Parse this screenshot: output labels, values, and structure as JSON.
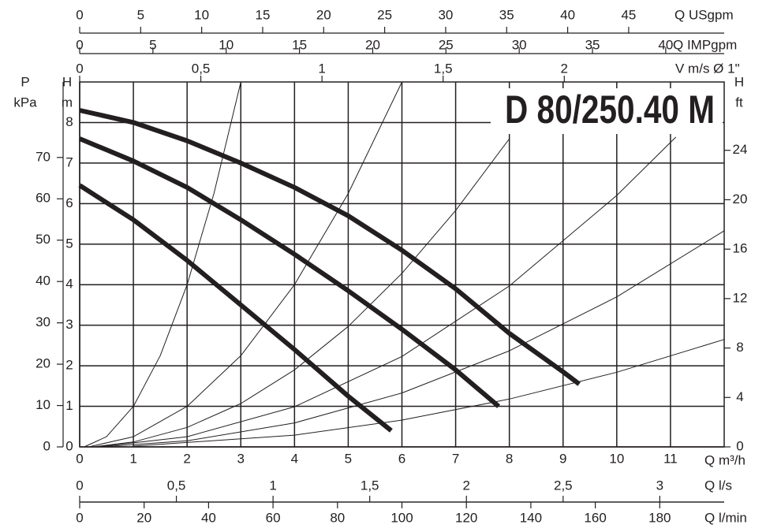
{
  "chart_data": {
    "type": "line",
    "title": "D 80/250.40 M",
    "x_label": "Q m³/h",
    "y_label": {
      "symbol": "H",
      "unit": "m"
    },
    "xlim": [
      0,
      12
    ],
    "xticks": [
      0,
      1,
      2,
      3,
      4,
      5,
      6,
      7,
      8,
      9,
      10,
      11
    ],
    "ylim": [
      0,
      9
    ],
    "yticks": [
      0,
      1,
      2,
      3,
      4,
      5,
      6,
      7,
      8
    ],
    "grid": true,
    "left_axis": {
      "symbol": "P",
      "unit": "kPa",
      "lim": [
        0,
        88.26
      ],
      "ticks": [
        0,
        10,
        20,
        30,
        40,
        50,
        60,
        70
      ]
    },
    "right_axis": {
      "symbol": "H",
      "unit": "ft",
      "lim": [
        0,
        29.53
      ],
      "ticks": [
        0,
        4,
        8,
        12,
        16,
        20,
        24
      ]
    },
    "top_axes": [
      {
        "label": "Q USgpm",
        "lim": [
          0,
          52.83
        ],
        "ticks": [
          0,
          5,
          10,
          15,
          20,
          25,
          30,
          35,
          40,
          45
        ]
      },
      {
        "label": "Q IMPgpm",
        "lim": [
          0,
          43.99
        ],
        "ticks": [
          0,
          5,
          10,
          15,
          20,
          25,
          30,
          35,
          40
        ]
      },
      {
        "label": "V m/s Ø 1\"",
        "lim": [
          0,
          2.66
        ],
        "ticks": [
          0,
          {
            "value": 0.5,
            "label": "0,5"
          },
          1,
          {
            "value": 1.5,
            "label": "1,5"
          },
          2
        ]
      }
    ],
    "bottom_axes": [
      {
        "label": "Q l/s",
        "lim": [
          0,
          3.333
        ],
        "ticks": [
          0,
          {
            "value": 0.5,
            "label": "0,5"
          },
          1,
          {
            "value": 1.5,
            "label": "1,5"
          },
          2,
          {
            "value": 2.5,
            "label": "2,5"
          },
          3
        ]
      },
      {
        "label": "Q l/min",
        "lim": [
          0,
          200
        ],
        "ticks": [
          0,
          20,
          40,
          60,
          80,
          100,
          120,
          140,
          160,
          180
        ]
      }
    ],
    "pump_curves": [
      {
        "color": "#231f20",
        "x": [
          0,
          1,
          2,
          3,
          4,
          5,
          6,
          7,
          8,
          9,
          9.3
        ],
        "values": [
          8.3,
          8.0,
          7.55,
          7.0,
          6.4,
          5.7,
          4.85,
          3.9,
          2.8,
          1.85,
          1.55
        ]
      },
      {
        "color": "#231f20",
        "x": [
          0,
          1,
          2,
          3,
          4,
          5,
          6,
          7,
          7.8
        ],
        "values": [
          7.6,
          7.05,
          6.4,
          5.6,
          4.75,
          3.85,
          2.9,
          1.9,
          1.0
        ]
      },
      {
        "color": "#231f20",
        "x": [
          0,
          1,
          2,
          3,
          4,
          5,
          5.8
        ],
        "values": [
          6.45,
          5.6,
          4.6,
          3.5,
          2.4,
          1.25,
          0.4
        ]
      }
    ],
    "system_curves": [
      {
        "color": "#231f20",
        "x": [
          0.1,
          0.5,
          1,
          1.5,
          2,
          2.5,
          3
        ],
        "values": [
          0.01,
          0.25,
          1,
          2.25,
          4,
          6.25,
          9
        ]
      },
      {
        "color": "#231f20",
        "x": [
          0.2,
          1,
          2,
          3,
          4,
          5,
          6
        ],
        "values": [
          0.01,
          0.25,
          1,
          2.25,
          4,
          6.25,
          9
        ]
      },
      {
        "color": "#231f20",
        "x": [
          0.3,
          1,
          2,
          3,
          4,
          5,
          6,
          7,
          8
        ],
        "values": [
          0.01,
          0.12,
          0.48,
          1.07,
          1.9,
          2.97,
          4.28,
          5.83,
          7.6
        ]
      },
      {
        "color": "#231f20",
        "x": [
          0.4,
          2,
          4,
          6,
          8,
          10,
          11.1
        ],
        "values": [
          0.01,
          0.25,
          0.99,
          2.23,
          3.97,
          6.2,
          7.64
        ]
      },
      {
        "color": "#231f20",
        "x": [
          0.5,
          2,
          4,
          6,
          8,
          10,
          12
        ],
        "values": [
          0.01,
          0.15,
          0.59,
          1.33,
          2.37,
          3.7,
          5.33
        ]
      },
      {
        "color": "#231f20",
        "x": [
          1,
          4,
          6,
          8,
          10,
          12
        ],
        "values": [
          0.02,
          0.29,
          0.66,
          1.18,
          1.84,
          2.65
        ]
      }
    ]
  }
}
